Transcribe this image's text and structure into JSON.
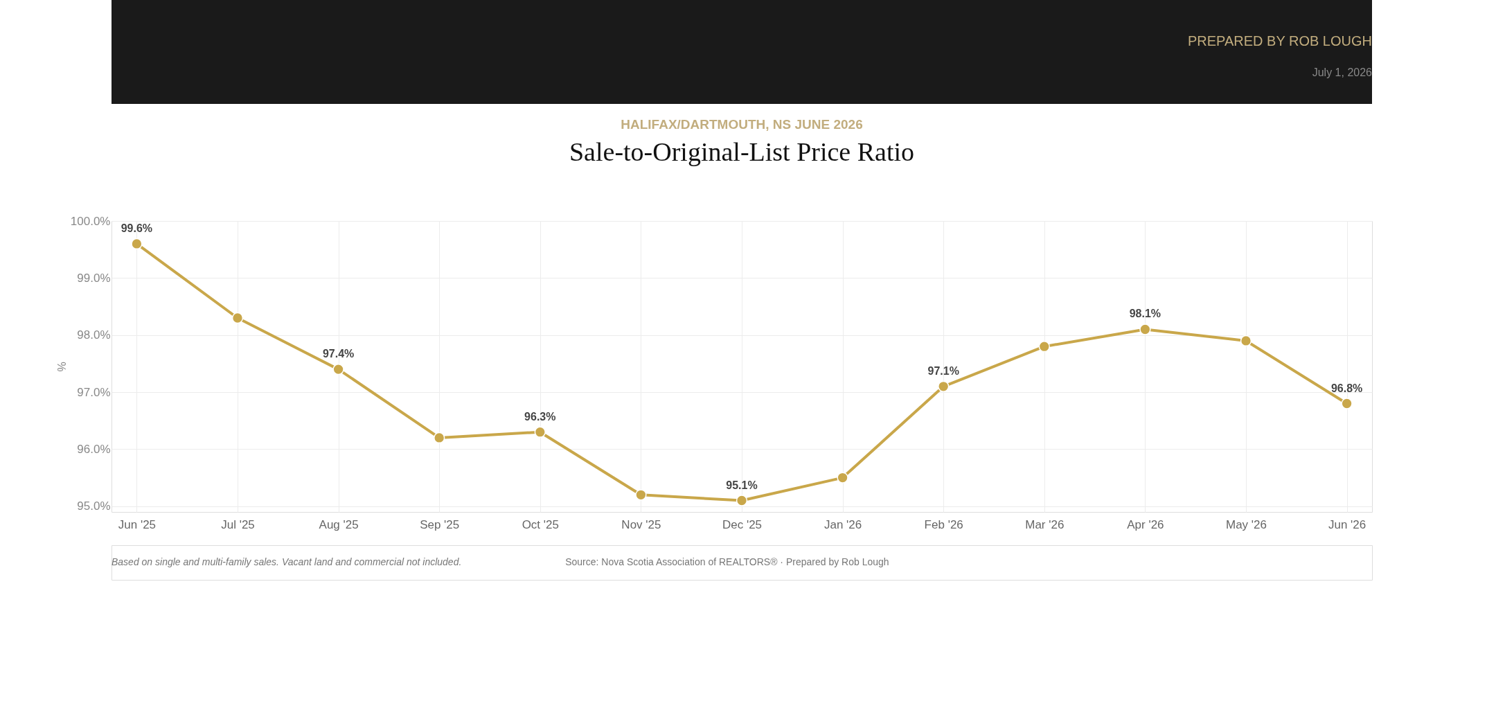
{
  "chart_data": {
    "type": "line",
    "title": "Sale-to-Original-List Price Ratio",
    "subtitle": "HALIFAX/DARTMOUTH, NS JUNE 2026",
    "ylabel": "%",
    "categories": [
      "Jun '25",
      "Jul '25",
      "Aug '25",
      "Sep '25",
      "Oct '25",
      "Nov '25",
      "Dec '25",
      "Jan '26",
      "Feb '26",
      "Mar '26",
      "Apr '26",
      "May '26",
      "Jun '26"
    ],
    "series": [
      {
        "color": "#c9a74a",
        "values": [
          99.6,
          98.3,
          97.4,
          96.2,
          96.3,
          95.2,
          95.1,
          95.5,
          97.1,
          97.8,
          98.1,
          97.9,
          96.8
        ],
        "value_labels": [
          "99.6%",
          null,
          "97.4%",
          null,
          "96.3%",
          null,
          "95.1%",
          null,
          "97.1%",
          null,
          "98.1%",
          null,
          "96.8%"
        ]
      }
    ],
    "ylim": [
      94.9,
      100.0
    ],
    "yticks": [
      {
        "value": 95,
        "label": "95.0%"
      },
      {
        "value": 96,
        "label": "96.0%"
      },
      {
        "value": 97,
        "label": "97.0%"
      },
      {
        "value": 98,
        "label": "98.0%"
      },
      {
        "value": 99,
        "label": "99.0%"
      },
      {
        "value": 100,
        "label": "100.0%"
      }
    ],
    "grid": true,
    "marker": "circle",
    "line_style": "solid",
    "legend": false,
    "annotations": [
      "PREPARED BY ROB LOUGH",
      "July 1, 2026",
      "Based on single and multi-family sales. Vacant land and commercial not included.",
      "Source: Nova Scotia Association of REALTORS® · Prepared by Rob Lough"
    ]
  }
}
